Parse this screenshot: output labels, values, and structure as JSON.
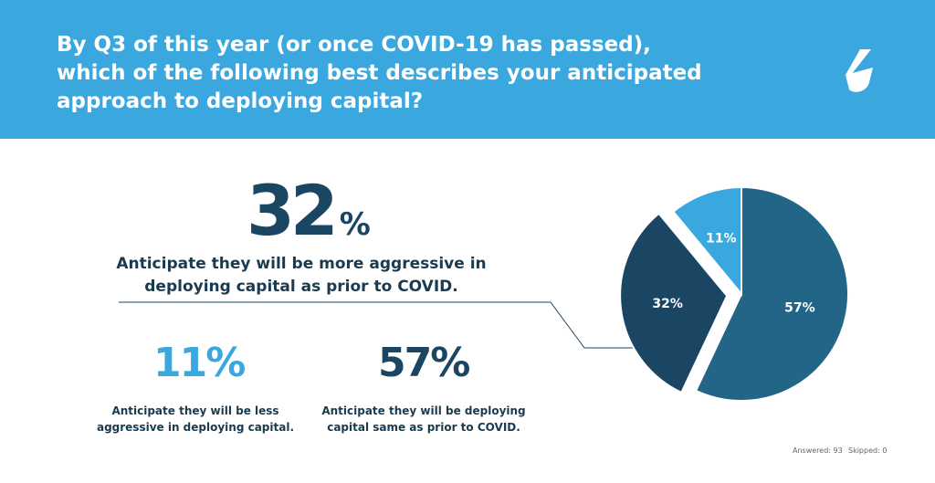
{
  "header": {
    "question": "By Q3 of this year (or once COVID-19 has passed), which of the following best describes your anticipated approach to deploying capital?"
  },
  "logo": {
    "icon": "s-logo-icon"
  },
  "stats": [
    {
      "value": "32",
      "unit": "%",
      "text": "Anticipate they will be more aggressive in deploying capital as prior to COVID."
    },
    {
      "value": "11%",
      "text": "Anticipate they will be less aggressive in deploying capital."
    },
    {
      "value": "57%",
      "text": "Anticipate they will be  deploying capital same as prior to COVID."
    }
  ],
  "footer": {
    "answered": "Answered: 93",
    "skipped": "Skipped: 0"
  },
  "colors": {
    "header": "#3aa8de",
    "dark": "#1a4664",
    "mid": "#236587",
    "light": "#3aa8de"
  },
  "chart_data": {
    "type": "pie",
    "slices": [
      {
        "label": "57%",
        "value": 57,
        "color": "#236587"
      },
      {
        "label": "32%",
        "value": 32,
        "color": "#1a4664",
        "exploded": true
      },
      {
        "label": "11%",
        "value": 11,
        "color": "#3aa8de"
      }
    ]
  }
}
